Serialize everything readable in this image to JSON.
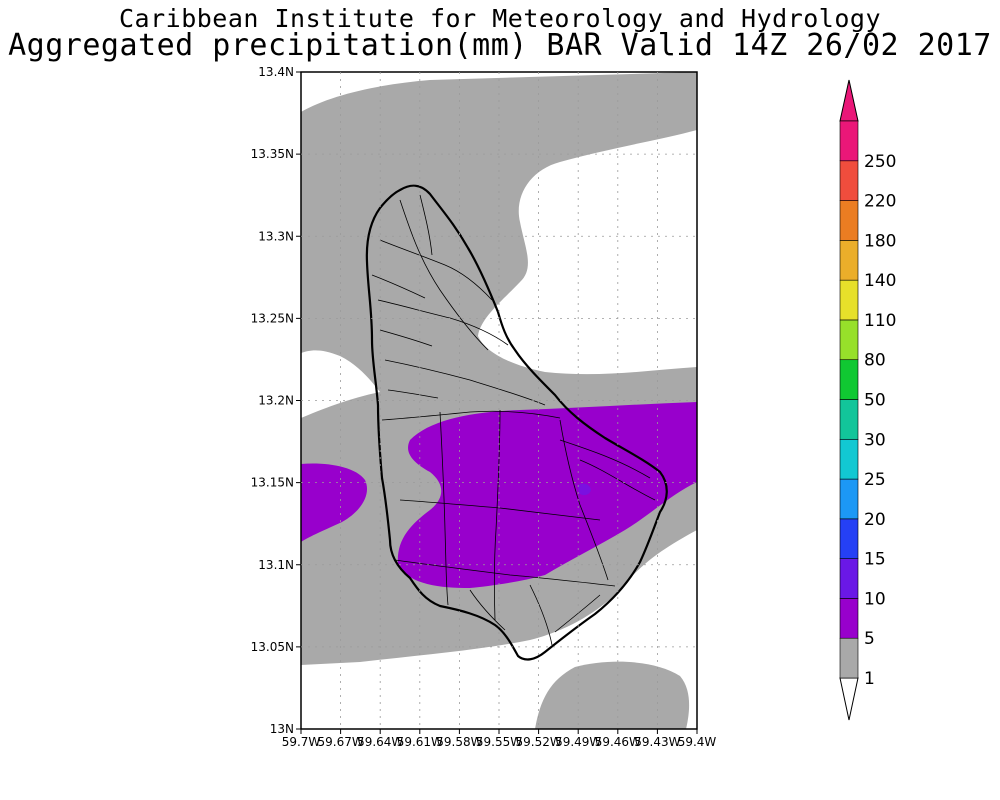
{
  "header": {
    "title": "Caribbean Institute for Meteorology and Hydrology",
    "subtitle": "Aggregated precipitation(mm) BAR Valid 14Z 26/02 2017"
  },
  "map": {
    "type": "precipitation-contour-map",
    "region": "Barbados",
    "lat_range": [
      13.0,
      13.4
    ],
    "lon_range": [
      -59.7,
      -59.4
    ],
    "lat_ticks": [
      "13N",
      "13.05N",
      "13.1N",
      "13.15N",
      "13.2N",
      "13.25N",
      "13.3N",
      "13.35N",
      "13.4N"
    ],
    "lon_ticks": [
      "59.7W",
      "59.67W",
      "59.64W",
      "59.61W",
      "59.58W",
      "59.55W",
      "59.52W",
      "59.49W",
      "59.46W",
      "59.43W",
      "59.4W"
    ],
    "grid": true,
    "fill_colors": {
      "1-5": "#a9a9a9",
      "5-10": "#9800cc"
    }
  },
  "legend": {
    "levels": [
      "1",
      "5",
      "10",
      "15",
      "20",
      "25",
      "30",
      "50",
      "80",
      "110",
      "140",
      "180",
      "220",
      "250"
    ],
    "colors": [
      "#a9a9a9",
      "#9800cc",
      "#6a18e6",
      "#2540f5",
      "#1c98f5",
      "#12c8d2",
      "#12c59a",
      "#10c832",
      "#97e02a",
      "#e7e02a",
      "#ebae2a",
      "#eb7d22",
      "#f04d3d",
      "#ea1778"
    ],
    "below_color": "#ffffff",
    "above_color": "#ea1778"
  }
}
